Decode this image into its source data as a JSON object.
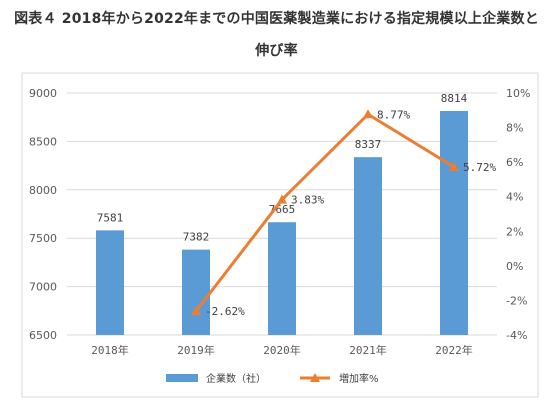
{
  "title_line1": "図表４ 2018年から2022年までの中国医薬製造業における指定規模以上企業数と",
  "title_line2": "伸び率",
  "chart_data": {
    "type": "bar+line",
    "categories": [
      "2018年",
      "2019年",
      "2020年",
      "2021年",
      "2022年"
    ],
    "series": [
      {
        "name": "企業数（社）",
        "type": "bar",
        "axis": "left",
        "color": "#5b9bd5",
        "values": [
          7581,
          7382,
          7665,
          8337,
          8814
        ],
        "labels": [
          "7581",
          "7382",
          "7665",
          "8337",
          "8814"
        ]
      },
      {
        "name": "増加率%",
        "type": "line",
        "axis": "right",
        "color": "#ed7d31",
        "values": [
          null,
          -2.62,
          3.83,
          8.77,
          5.72
        ],
        "labels": [
          "",
          "-2.62%",
          "3.83%",
          "8.77%",
          "5.72%"
        ]
      }
    ],
    "y_left": {
      "min": 6500,
      "max": 9000,
      "ticks": [
        "6500",
        "7000",
        "7500",
        "8000",
        "8500",
        "9000"
      ]
    },
    "y_right": {
      "min": -4,
      "max": 10,
      "ticks": [
        "-4%",
        "-2%",
        "0%",
        "2%",
        "4%",
        "6%",
        "8%",
        "10%"
      ]
    },
    "grid": true,
    "legend_position": "bottom"
  }
}
